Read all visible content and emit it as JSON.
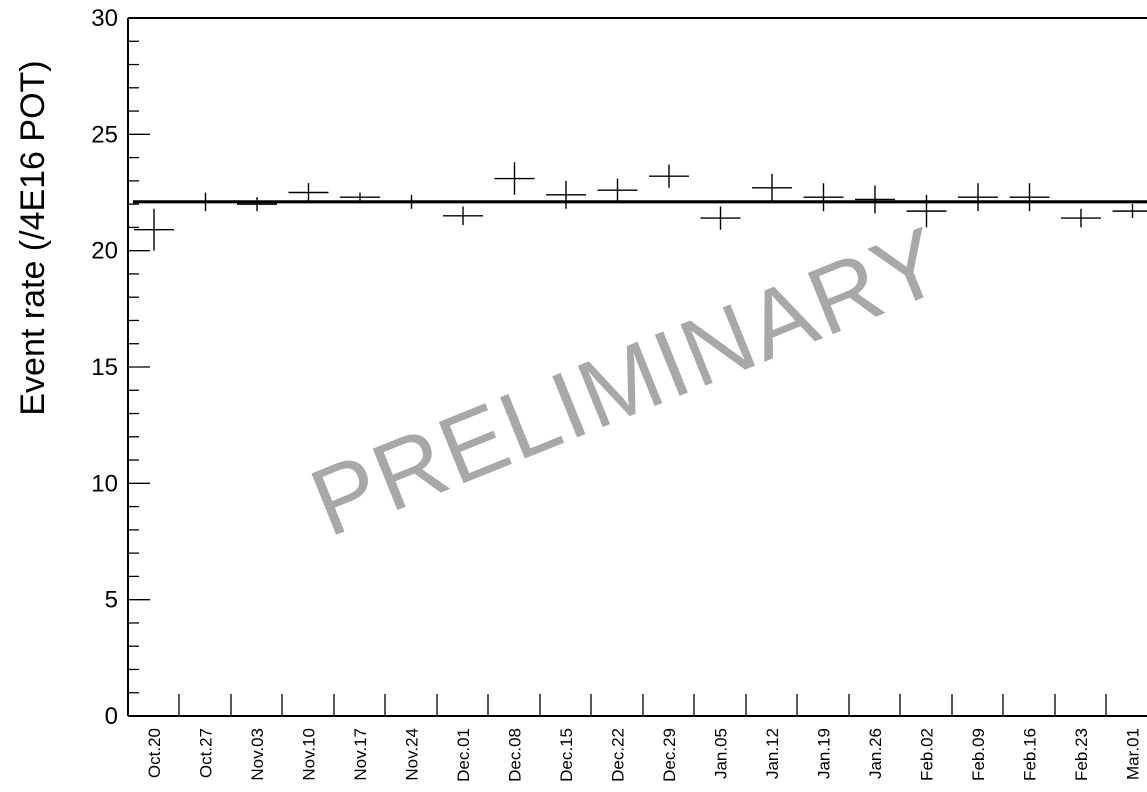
{
  "chart_data": {
    "type": "scatter",
    "ylabel": "Event rate (/4E16 POT)",
    "xlabel": "",
    "title": "",
    "ylim": [
      0,
      30
    ],
    "yticks": [
      0,
      5,
      10,
      15,
      20,
      25,
      30
    ],
    "yticks_labels": [
      "0",
      "5",
      "10",
      "15",
      "20",
      "25",
      "30"
    ],
    "categories": [
      "Oct.20",
      "Oct.27",
      "Nov.03",
      "Nov.10",
      "Nov.17",
      "Nov.24",
      "Dec.01",
      "Dec.08",
      "Dec.15",
      "Dec.22",
      "Dec.29",
      "Jan.05",
      "Jan.12",
      "Jan.19",
      "Jan.26",
      "Feb.02",
      "Feb.09",
      "Feb.16",
      "Feb.23",
      "Mar.01"
    ],
    "points": [
      {
        "y": 20.9,
        "err": 0.9
      },
      {
        "y": 22.1,
        "err": 0.4
      },
      {
        "y": 22.0,
        "err": 0.3
      },
      {
        "y": 22.5,
        "err": 0.4
      },
      {
        "y": 22.3,
        "err": 0.2
      },
      {
        "y": 22.1,
        "err": 0.3
      },
      {
        "y": 21.5,
        "err": 0.4
      },
      {
        "y": 23.1,
        "err": 0.7
      },
      {
        "y": 22.4,
        "err": 0.6
      },
      {
        "y": 22.6,
        "err": 0.5
      },
      {
        "y": 23.2,
        "err": 0.5
      },
      {
        "y": 21.4,
        "err": 0.5
      },
      {
        "y": 22.7,
        "err": 0.6
      },
      {
        "y": 22.3,
        "err": 0.6
      },
      {
        "y": 22.2,
        "err": 0.6
      },
      {
        "y": 21.7,
        "err": 0.7
      },
      {
        "y": 22.3,
        "err": 0.6
      },
      {
        "y": 22.3,
        "err": 0.6
      },
      {
        "y": 21.4,
        "err": 0.4
      },
      {
        "y": 21.7,
        "err": 0.3
      }
    ],
    "fit_value": 22.1,
    "grid": false,
    "annotations": [
      {
        "text": "PRELIMINARY"
      }
    ]
  }
}
